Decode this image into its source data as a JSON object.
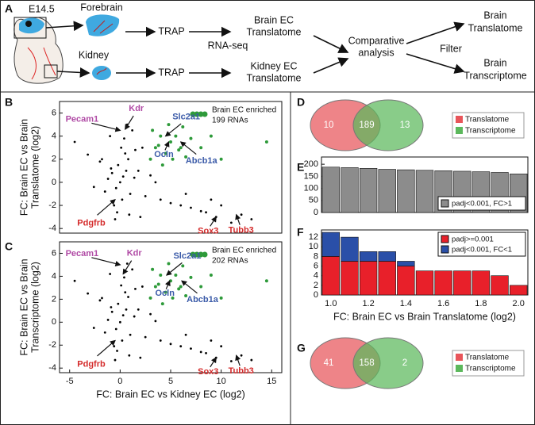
{
  "panels": [
    "A",
    "B",
    "C",
    "D",
    "E",
    "F",
    "G"
  ],
  "diagram": {
    "stage": "E14.5",
    "forebrain": "Forebrain",
    "kidney": "Kidney",
    "trap_top": "TRAP",
    "trap_bottom": "TRAP",
    "method": "RNA-seq",
    "brain_ec": [
      "Brain EC",
      "Translatome"
    ],
    "kidney_ec": [
      "Kidney EC",
      "Translatome"
    ],
    "comparative": [
      "Comparative",
      "analysis"
    ],
    "filter": "Filter",
    "out_translatome": [
      "Brain",
      "Translatome"
    ],
    "out_transcriptome": [
      "Brain",
      "Transcriptome"
    ]
  },
  "chart_data": [
    {
      "type": "scatter",
      "ylabel": [
        "FC: Brain EC vs Brain",
        "Translatome (log2)"
      ],
      "xlim": [
        -6,
        16
      ],
      "ylim": [
        -4.4,
        7
      ],
      "yticks": [
        -4,
        -2,
        0,
        2,
        4,
        6
      ],
      "series": [
        {
          "color": "#000000",
          "x": [
            0,
            0.3,
            -0.4,
            0.6,
            -0.8,
            1,
            -1.2,
            0.2,
            -0.2,
            0.8,
            -0.6,
            1.4,
            -1.5,
            0.5,
            -0.3,
            0.1,
            1.8,
            -2,
            2.5,
            -2.6,
            3,
            -3.2,
            4,
            5,
            6,
            7,
            8,
            9,
            9.5,
            10,
            11,
            12,
            -4.5,
            -1,
            1.2,
            2,
            0.4,
            -0.5,
            0.9,
            3.5,
            6.5,
            8.5,
            13,
            2.2,
            -1.8,
            0.7,
            1.5,
            -0.9
          ],
          "values": [
            0,
            0.5,
            -0.5,
            1,
            0.8,
            -1,
            0.3,
            -1.5,
            1.5,
            2,
            -2,
            0.4,
            -0.8,
            2.5,
            -2.6,
            3,
            1,
            1.8,
            -1.2,
            -0.4,
            0.6,
            2.4,
            -1.5,
            -1.8,
            -2,
            -2.2,
            -2.5,
            -1.5,
            -3,
            -2,
            -3.5,
            -2.8,
            3.5,
            4,
            4.5,
            -3,
            3.8,
            -3.2,
            -2.8,
            0,
            -1,
            -2.6,
            -3.2,
            3,
            2,
            5,
            2.8,
            1.2
          ]
        },
        {
          "name": "Brain EC enriched",
          "count_label": "199 RNAs",
          "color": "#2e9a3a",
          "x": [
            3,
            3.5,
            4,
            4.5,
            5,
            5.5,
            6,
            6.5,
            7,
            3.2,
            4.2,
            5.2,
            6.2,
            3.8,
            4.8,
            5.8,
            8,
            9,
            10,
            14.5
          ],
          "values": [
            2,
            3,
            4,
            2.5,
            3.5,
            4,
            3,
            2.2,
            3.8,
            4.5,
            1.5,
            2,
            4.8,
            3.2,
            5,
            2.8,
            3,
            4,
            2,
            3.5
          ]
        }
      ],
      "annotations": [
        {
          "text": "Pecam1",
          "color": "#b04aa5",
          "x": 0,
          "y": 4.5
        },
        {
          "text": "Kdr",
          "color": "#b04aa5",
          "x": 0.5,
          "y": 4.6
        },
        {
          "text": "Slc2a1",
          "color": "#3a5aa8",
          "x": 4.5,
          "y": 4
        },
        {
          "text": "Ocln",
          "color": "#3a5aa8",
          "x": 4.8,
          "y": 3.5
        },
        {
          "text": "Abcb1a",
          "color": "#3a5aa8",
          "x": 6,
          "y": 3.5
        },
        {
          "text": "Pdgfrb",
          "color": "#d42a2a",
          "x": -0.5,
          "y": -1.5
        },
        {
          "text": "Sox3",
          "color": "#d42a2a",
          "x": 9.5,
          "y": -3
        },
        {
          "text": "Tubb3",
          "color": "#d42a2a",
          "x": 11.5,
          "y": -2.8
        }
      ]
    },
    {
      "type": "scatter",
      "ylabel": [
        "FC: Brain EC vs Brain",
        "Transcriptome (log2)"
      ],
      "xlabel": "FC: Brain EC vs Kidney EC (log2)",
      "xlim": [
        -6,
        16
      ],
      "ylim": [
        -4.4,
        7
      ],
      "xticks": [
        -5,
        0,
        5,
        10,
        15
      ],
      "yticks": [
        -4,
        -2,
        0,
        2,
        4,
        6
      ],
      "series": [
        {
          "color": "#000000",
          "x": [
            0,
            0.3,
            -0.4,
            0.6,
            -0.8,
            1,
            -1.2,
            0.2,
            -0.2,
            0.8,
            -0.6,
            1.4,
            -1.5,
            0.5,
            -0.3,
            0.1,
            1.8,
            -2,
            2.5,
            -2.6,
            3,
            -3.2,
            4,
            5,
            6,
            7,
            8,
            9,
            9.5,
            10,
            11,
            12,
            -4.5,
            -1,
            1.2,
            2,
            0.4,
            -0.5,
            0.9,
            3.5,
            6.5,
            8.5,
            13,
            2.2,
            -1.8,
            0.7,
            1.5,
            -0.9
          ],
          "values": [
            0,
            0.6,
            -0.6,
            1.1,
            0.9,
            -1.1,
            0.2,
            -1.6,
            1.6,
            2.2,
            -2.1,
            0.5,
            -0.9,
            2.6,
            -2.5,
            3.2,
            1.1,
            1.9,
            -1.3,
            -0.5,
            0.7,
            2.5,
            -1.6,
            -1.9,
            -2.1,
            -2.3,
            -2.6,
            -1.6,
            -3.1,
            -2.1,
            -3.4,
            -2.9,
            3.6,
            4.2,
            4.6,
            -3.1,
            3.9,
            -3.3,
            -2.9,
            0.1,
            -1.1,
            -2.7,
            -3.3,
            3.1,
            2.1,
            5.1,
            2.9,
            1.3
          ]
        },
        {
          "name": "Brain EC enriched",
          "count_label": "202 RNAs",
          "color": "#2e9a3a",
          "x": [
            3,
            3.5,
            4,
            4.5,
            5,
            5.5,
            6,
            6.5,
            7,
            3.2,
            4.2,
            5.2,
            6.2,
            3.8,
            4.8,
            5.8,
            8,
            9,
            10,
            14.5
          ],
          "values": [
            2.1,
            3.1,
            4.1,
            2.6,
            3.6,
            4.1,
            3.1,
            2.3,
            3.9,
            4.6,
            1.6,
            2.1,
            4.9,
            3.3,
            5.1,
            2.9,
            3.1,
            4.1,
            2.1,
            3.6
          ]
        }
      ],
      "annotations": [
        {
          "text": "Pecam1",
          "color": "#b04aa5",
          "x": 0,
          "y": 5
        },
        {
          "text": "Kdr",
          "color": "#b04aa5",
          "x": 0.3,
          "y": 4.2
        },
        {
          "text": "Slc2a1",
          "color": "#3a5aa8",
          "x": 4.6,
          "y": 4.1
        },
        {
          "text": "Ocln",
          "color": "#3a5aa8",
          "x": 4.9,
          "y": 3.6
        },
        {
          "text": "Abcb1a",
          "color": "#3a5aa8",
          "x": 6.1,
          "y": 3.6
        },
        {
          "text": "Pdgfrb",
          "color": "#d42a2a",
          "x": -0.5,
          "y": -1.6
        },
        {
          "text": "Sox3",
          "color": "#d42a2a",
          "x": 9.5,
          "y": -3.1
        },
        {
          "text": "Tubb3",
          "color": "#d42a2a",
          "x": 11.5,
          "y": -2.9
        }
      ]
    },
    {
      "type": "venn",
      "sets": [
        {
          "name": "Translatome",
          "color": "#e8555a"
        },
        {
          "name": "Transcriptome",
          "color": "#5cb85c"
        }
      ],
      "values": [
        10,
        189,
        13
      ]
    },
    {
      "type": "bar",
      "x": [
        1,
        1.1,
        1.2,
        1.3,
        1.4,
        1.5,
        1.6,
        1.7,
        1.8,
        1.9,
        2
      ],
      "xlim": [
        0.95,
        2.05
      ],
      "ylim": [
        0,
        230
      ],
      "yticks": [
        0,
        50,
        100,
        150,
        200
      ],
      "legend": "lower right",
      "series": [
        {
          "name": "padj<0.001, FC>1",
          "color": "#8c8c8c",
          "values": [
            188,
            186,
            183,
            179,
            177,
            175,
            173,
            171,
            169,
            166,
            160
          ]
        }
      ]
    },
    {
      "type": "bar",
      "stacked": true,
      "x": [
        1,
        1.1,
        1.2,
        1.3,
        1.4,
        1.5,
        1.6,
        1.7,
        1.8,
        1.9,
        2
      ],
      "xlim": [
        0.95,
        2.05
      ],
      "ylim": [
        0,
        13.5
      ],
      "yticks": [
        0,
        2,
        4,
        6,
        8,
        10,
        12
      ],
      "xticks": [
        {
          "value": 1,
          "label": "1.0"
        },
        1.2,
        1.4,
        1.6,
        1.8,
        {
          "value": 2,
          "label": "2.0"
        }
      ],
      "xlabel": "FC: Brain EC vs Brain Translatome (log2)",
      "legend": "upper right",
      "series": [
        {
          "name": "padj>=0.001",
          "color": "#e8202a",
          "values": [
            8,
            7,
            7,
            7,
            6,
            5,
            5,
            5,
            5,
            4,
            2
          ]
        },
        {
          "name": "padj<0.001, FC<1",
          "color": "#2a4fa8",
          "values": [
            5,
            5,
            2,
            2,
            1,
            0,
            0,
            0,
            0,
            0,
            0
          ]
        }
      ]
    },
    {
      "type": "venn",
      "sets": [
        {
          "name": "Translatome",
          "color": "#e8555a"
        },
        {
          "name": "Transcriptome",
          "color": "#5cb85c"
        }
      ],
      "values": [
        41,
        158,
        2
      ]
    }
  ]
}
